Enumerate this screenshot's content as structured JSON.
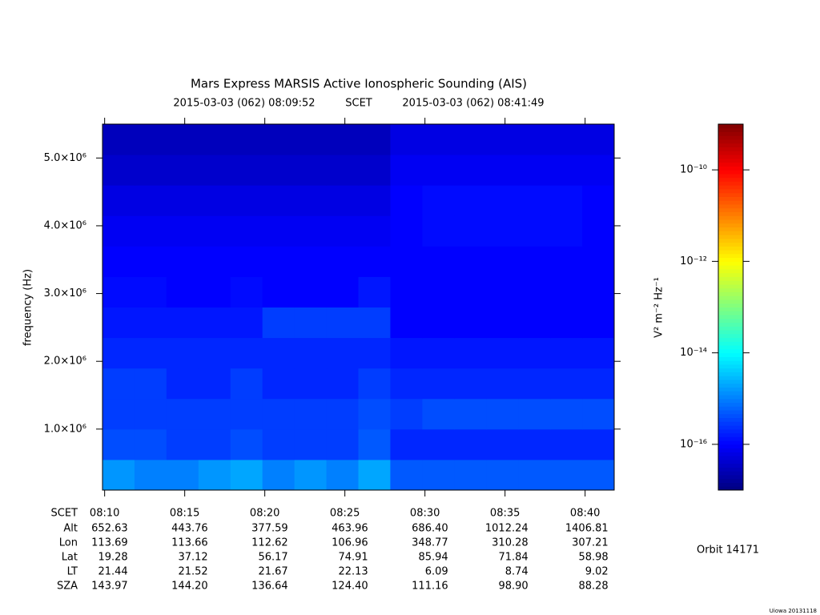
{
  "chart_data": {
    "type": "heatmap",
    "title": "Mars Express MARSIS Active Ionospheric Sounding (AIS)",
    "subtitle": {
      "start": "2015-03-03 (062) 08:09:52",
      "label": "SCET",
      "end": "2015-03-03 (062) 08:41:49"
    },
    "ylabel": "frequency (Hz)",
    "xlim": [
      "08:09:52",
      "08:41:49"
    ],
    "xticks": [
      "08:10",
      "08:15",
      "08:20",
      "08:25",
      "08:30",
      "08:35",
      "08:40"
    ],
    "ylim": [
      100000,
      5500000
    ],
    "yticks": [
      {
        "value": 1000000,
        "label": "1.0×10⁶"
      },
      {
        "value": 2000000,
        "label": "2.0×10⁶"
      },
      {
        "value": 3000000,
        "label": "3.0×10⁶"
      },
      {
        "value": 4000000,
        "label": "4.0×10⁶"
      },
      {
        "value": 5000000,
        "label": "5.0×10⁶"
      }
    ],
    "z": [
      [
        1.5e-15,
        1e-15,
        1e-15,
        1.5e-15,
        2e-15,
        1e-15,
        1.5e-15,
        1e-15,
        2e-15,
        5e-16,
        5e-16,
        5e-16,
        5e-16,
        5e-16,
        5e-16,
        5e-16
      ],
      [
        4e-16,
        4e-16,
        3e-16,
        3e-16,
        4e-16,
        3e-16,
        3e-16,
        3e-16,
        5e-16,
        2e-16,
        2e-16,
        2e-16,
        2e-16,
        2e-16,
        2e-16,
        2e-16
      ],
      [
        3e-16,
        3e-16,
        3e-16,
        3e-16,
        3e-16,
        3e-16,
        3e-16,
        3e-16,
        4e-16,
        3e-16,
        4e-16,
        4e-16,
        4e-16,
        4e-16,
        4e-16,
        4e-16
      ],
      [
        3e-16,
        3e-16,
        2e-16,
        2e-16,
        3e-16,
        2e-16,
        2e-16,
        2e-16,
        3e-16,
        2e-16,
        2e-16,
        2e-16,
        2e-16,
        2e-16,
        2e-16,
        2e-16
      ],
      [
        2e-16,
        2e-16,
        2e-16,
        2e-16,
        2e-16,
        2e-16,
        2e-16,
        2e-16,
        2e-16,
        1.5e-16,
        1.5e-16,
        1.5e-16,
        1.5e-16,
        1.5e-16,
        1.5e-16,
        1.5e-16
      ],
      [
        1.5e-16,
        1.5e-16,
        1.5e-16,
        1.5e-16,
        1.5e-16,
        3e-16,
        3e-16,
        3e-16,
        3e-16,
        1e-16,
        1e-16,
        1e-16,
        1e-16,
        1e-16,
        1e-16,
        1e-16
      ],
      [
        1.2e-16,
        1.2e-16,
        1e-16,
        1e-16,
        1.2e-16,
        1e-16,
        1e-16,
        1e-16,
        1.5e-16,
        1e-16,
        1e-16,
        1e-16,
        1e-16,
        1e-16,
        1e-16,
        1e-16
      ],
      [
        1e-16,
        1e-16,
        1e-16,
        1e-16,
        1e-16,
        1e-16,
        1e-16,
        1e-16,
        1e-16,
        1e-16,
        1e-16,
        1e-16,
        1e-16,
        1e-16,
        1e-16,
        1e-16
      ],
      [
        8e-17,
        8e-17,
        8e-17,
        8e-17,
        8e-17,
        8e-17,
        8e-17,
        8e-17,
        8e-17,
        1e-16,
        1.2e-16,
        1.2e-16,
        1.2e-16,
        1.2e-16,
        1.2e-16,
        1e-16
      ],
      [
        6e-17,
        6e-17,
        6e-17,
        6e-17,
        6e-17,
        6e-17,
        6e-17,
        6e-17,
        6e-17,
        1e-16,
        1.2e-16,
        1.2e-16,
        1.2e-16,
        1.2e-16,
        1.2e-16,
        1e-16
      ],
      [
        4e-17,
        4e-17,
        4e-17,
        4e-17,
        4e-17,
        4e-17,
        4e-17,
        4e-17,
        4e-17,
        8e-17,
        8e-17,
        8e-17,
        8e-17,
        8e-17,
        8e-17,
        8e-17
      ],
      [
        3e-17,
        3e-17,
        3e-17,
        3e-17,
        3e-17,
        3e-17,
        3e-17,
        3e-17,
        3e-17,
        6e-17,
        6e-17,
        6e-17,
        6e-17,
        6e-17,
        6e-17,
        6e-17
      ]
    ],
    "zscale": "log",
    "zlim": [
      1e-17,
      1e-09
    ],
    "zticks": [
      {
        "value": 1e-10,
        "label": "10⁻¹⁰"
      },
      {
        "value": 1e-12,
        "label": "10⁻¹²"
      },
      {
        "value": 1e-14,
        "label": "10⁻¹⁴"
      },
      {
        "value": 1e-16,
        "label": "10⁻¹⁶"
      }
    ],
    "zlabel": "V² m⁻² Hz⁻¹",
    "colormap": "jet"
  },
  "ephemeris": {
    "header": "SCET",
    "rows": [
      {
        "name": "Alt",
        "values": [
          "652.63",
          "443.76",
          "377.59",
          "463.96",
          "686.40",
          "1012.24",
          "1406.81"
        ]
      },
      {
        "name": "Lon",
        "values": [
          "113.69",
          "113.66",
          "112.62",
          "106.96",
          "348.77",
          "310.28",
          "307.21"
        ]
      },
      {
        "name": "Lat",
        "values": [
          "19.28",
          "37.12",
          "56.17",
          "74.91",
          "85.94",
          "71.84",
          "58.98"
        ]
      },
      {
        "name": "LT",
        "values": [
          "21.44",
          "21.52",
          "21.67",
          "22.13",
          "6.09",
          "8.74",
          "9.02"
        ]
      },
      {
        "name": "SZA",
        "values": [
          "143.97",
          "144.20",
          "136.64",
          "124.40",
          "111.16",
          "98.90",
          "88.28"
        ]
      }
    ]
  },
  "orbit": "Orbit 14171",
  "footer": "Uiowa 20131118"
}
